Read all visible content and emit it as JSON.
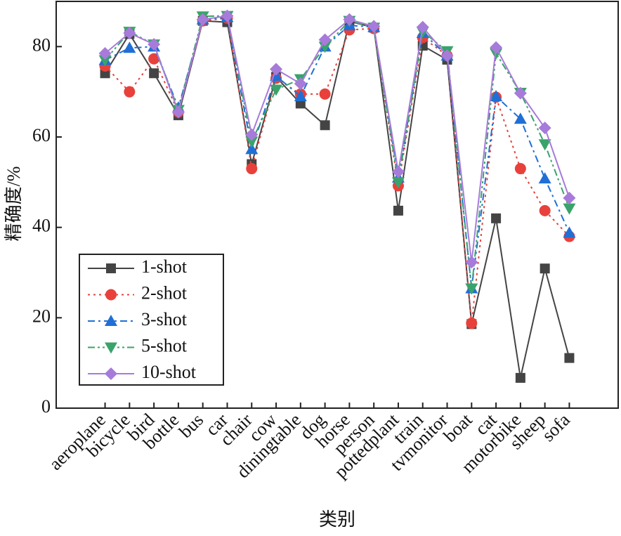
{
  "chart_data": {
    "type": "line",
    "x_label": "类别",
    "y_label": "精确度/%",
    "categories": [
      "aeroplane",
      "bicycle",
      "bird",
      "bottle",
      "bus",
      "car",
      "chair",
      "cow",
      "diningtable",
      "dog",
      "horse",
      "person",
      "pottedplant",
      "train",
      "tvmonitor",
      "boat",
      "cat",
      "motorbike",
      "sheep",
      "sofa"
    ],
    "ylim": [
      0,
      90
    ],
    "yticks": [
      0,
      20,
      40,
      60,
      80
    ],
    "grid": false,
    "legend": "lower left",
    "series": [
      {
        "name": "1-shot",
        "color": "#444444",
        "marker": "square",
        "line_style": "solid",
        "values": [
          74.1,
          82.8,
          74.1,
          64.8,
          85.7,
          85.4,
          54,
          73.3,
          67.4,
          62.6,
          85.6,
          84.2,
          43.7,
          80.2,
          77.1,
          18.6,
          42,
          6.7,
          30.9,
          11.1
        ]
      },
      {
        "name": "2-shot",
        "color": "#e8413c",
        "marker": "circle",
        "line_style": "dotted",
        "values": [
          75.7,
          70,
          77.3,
          65.5,
          85.7,
          86.3,
          53,
          73,
          69.5,
          69.5,
          83.7,
          84,
          49.2,
          82,
          78,
          18.8,
          68.8,
          53,
          43.7,
          38
        ]
      },
      {
        "name": "3-shot",
        "color": "#1f6fd6",
        "marker": "triangle-up",
        "line_style": "dash-dot",
        "values": [
          77,
          79.7,
          80,
          66.5,
          86,
          86.5,
          57.3,
          73.5,
          69,
          80,
          84.7,
          84.3,
          51,
          83,
          78,
          26.5,
          69,
          64,
          50.8,
          38.8
        ]
      },
      {
        "name": "5-shot",
        "color": "#3aa36b",
        "marker": "triangle-down",
        "line_style": "dash-dot-dot",
        "values": [
          77,
          83.3,
          80.5,
          66,
          86.7,
          86.8,
          59,
          70.5,
          72.8,
          80,
          85.7,
          84.2,
          50,
          83.3,
          79,
          26.5,
          78.5,
          69.8,
          58.4,
          44.2
        ]
      },
      {
        "name": "10-shot",
        "color": "#a77bd9",
        "marker": "diamond",
        "line_style": "solid",
        "values": [
          78.5,
          83,
          80.5,
          65.5,
          86,
          86.8,
          60.5,
          75,
          71.8,
          81.5,
          86,
          84.5,
          52.3,
          84.3,
          78,
          32.3,
          79.8,
          69.7,
          62,
          46.5
        ]
      }
    ]
  }
}
